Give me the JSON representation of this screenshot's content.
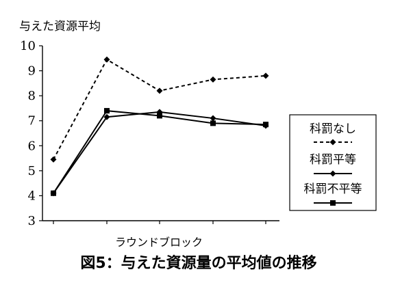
{
  "chart_data": {
    "type": "line",
    "title": "",
    "ylabel": "与えた資源平均",
    "xlabel": "ラウンドブロック",
    "x": [
      1,
      2,
      3,
      4,
      5
    ],
    "ylim": [
      3,
      10
    ],
    "yticks": [
      3,
      4,
      5,
      6,
      7,
      8,
      9,
      10
    ],
    "grid": false,
    "legend_position": "right",
    "series": [
      {
        "name": "科罰なし",
        "values": [
          5.45,
          9.45,
          8.2,
          8.65,
          8.8
        ],
        "line_style": "dashed",
        "marker": "diamond",
        "color": "#000000"
      },
      {
        "name": "科罰平等",
        "values": [
          4.1,
          7.15,
          7.35,
          7.1,
          6.8
        ],
        "line_style": "solid",
        "marker": "diamond",
        "color": "#000000"
      },
      {
        "name": "科罰不平等",
        "values": [
          4.1,
          7.4,
          7.2,
          6.9,
          6.85
        ],
        "line_style": "solid",
        "marker": "square",
        "color": "#000000"
      }
    ],
    "caption": "図5：与えた資源量の平均値の推移"
  }
}
